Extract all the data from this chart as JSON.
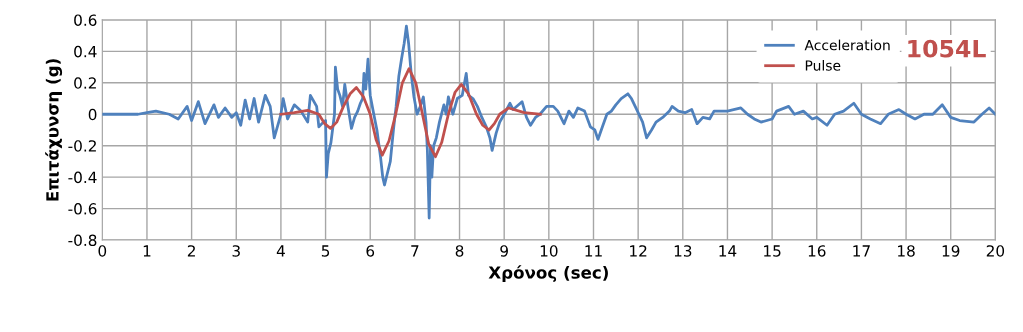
{
  "chart_data": {
    "type": "line",
    "xlabel": "Χρόνος (sec)",
    "ylabel": "Επιτάχυνση (g)",
    "annotations": [
      "1054L"
    ],
    "xlim": [
      0,
      20
    ],
    "xticks": [
      0,
      1,
      2,
      3,
      4,
      5,
      6,
      7,
      8,
      9,
      10,
      11,
      12,
      13,
      14,
      15,
      16,
      17,
      18,
      19,
      20
    ],
    "ylim": [
      -0.8,
      0.6
    ],
    "yticks": [
      -0.8,
      -0.6,
      -0.4,
      -0.2,
      0,
      0.2,
      0.4,
      0.6
    ],
    "grid": true,
    "legend": "top right",
    "marker": "none",
    "line_style": "solid",
    "series": [
      {
        "name": "Acceleration",
        "color": "#4f81bd",
        "x": [
          0,
          0.8,
          1.0,
          1.2,
          1.5,
          1.7,
          1.9,
          2.0,
          2.15,
          2.3,
          2.5,
          2.6,
          2.75,
          2.9,
          3.0,
          3.1,
          3.2,
          3.3,
          3.4,
          3.5,
          3.65,
          3.76,
          3.85,
          4.0,
          4.05,
          4.15,
          4.3,
          4.45,
          4.6,
          4.66,
          4.8,
          4.85,
          4.95,
          5.0,
          5.02,
          5.06,
          5.12,
          5.2,
          5.22,
          5.27,
          5.32,
          5.38,
          5.43,
          5.5,
          5.58,
          5.65,
          5.72,
          5.78,
          5.83,
          5.86,
          5.9,
          5.95,
          6.0,
          6.08,
          6.15,
          6.23,
          6.28,
          6.32,
          6.38,
          6.45,
          6.52,
          6.58,
          6.64,
          6.7,
          6.76,
          6.81,
          6.86,
          6.92,
          6.98,
          7.05,
          7.12,
          7.19,
          7.25,
          7.28,
          7.32,
          7.35,
          7.38,
          7.42,
          7.48,
          7.55,
          7.65,
          7.7,
          7.75,
          7.85,
          7.95,
          8.06,
          8.15,
          8.2,
          8.3,
          8.4,
          8.5,
          8.6,
          8.68,
          8.73,
          8.82,
          8.9,
          9.0,
          9.13,
          9.2,
          9.4,
          9.5,
          9.59,
          9.7,
          9.8,
          9.95,
          10.1,
          10.2,
          10.34,
          10.45,
          10.55,
          10.65,
          10.8,
          10.93,
          11.03,
          11.1,
          11.2,
          11.3,
          11.4,
          11.5,
          11.62,
          11.77,
          11.85,
          11.95,
          12.05,
          12.1,
          12.19,
          12.3,
          12.4,
          12.55,
          12.7,
          12.76,
          12.9,
          13.05,
          13.2,
          13.32,
          13.45,
          13.6,
          13.7,
          13.85,
          14.0,
          14.3,
          14.45,
          14.6,
          14.75,
          15.0,
          15.1,
          15.37,
          15.5,
          15.7,
          15.9,
          16.0,
          16.23,
          16.4,
          16.6,
          16.83,
          17.0,
          17.2,
          17.43,
          17.6,
          17.84,
          18.0,
          18.2,
          18.4,
          18.6,
          18.81,
          19.0,
          19.2,
          19.52,
          19.7,
          19.86,
          20.0
        ],
        "values": [
          0,
          0,
          0.01,
          0.02,
          0,
          -0.03,
          0.05,
          -0.04,
          0.08,
          -0.06,
          0.06,
          -0.02,
          0.04,
          -0.02,
          0.01,
          -0.07,
          0.09,
          -0.03,
          0.1,
          -0.05,
          0.12,
          0.05,
          -0.15,
          0.0,
          0.1,
          -0.03,
          0.06,
          0.02,
          -0.05,
          0.12,
          0.05,
          -0.08,
          -0.05,
          -0.04,
          -0.4,
          -0.25,
          -0.18,
          0.0,
          0.3,
          0.16,
          0.12,
          0.05,
          0.19,
          0.05,
          -0.09,
          -0.02,
          0.02,
          0.07,
          0.1,
          0.26,
          0.16,
          0.35,
          0.12,
          0.0,
          -0.1,
          -0.27,
          -0.4,
          -0.45,
          -0.38,
          -0.3,
          -0.1,
          0.05,
          0.24,
          0.35,
          0.45,
          0.56,
          0.45,
          0.25,
          0.11,
          0.0,
          0.05,
          0.11,
          -0.05,
          -0.23,
          -0.66,
          -0.2,
          -0.4,
          -0.2,
          -0.15,
          -0.05,
          0.06,
          0.0,
          0.11,
          0.0,
          0.1,
          0.12,
          0.26,
          0.12,
          0.1,
          0.05,
          -0.02,
          -0.08,
          -0.15,
          -0.23,
          -0.12,
          -0.05,
          0.0,
          0.07,
          0.03,
          0.08,
          -0.02,
          -0.07,
          -0.02,
          0.0,
          0.05,
          0.05,
          0.02,
          -0.06,
          0.02,
          -0.02,
          0.04,
          0.02,
          -0.08,
          -0.1,
          -0.16,
          -0.08,
          0.0,
          0.02,
          0.06,
          0.1,
          0.13,
          0.1,
          0.04,
          -0.02,
          -0.05,
          -0.15,
          -0.1,
          -0.05,
          -0.02,
          0.02,
          0.05,
          0.02,
          0.01,
          0.03,
          -0.06,
          -0.02,
          -0.03,
          0.02,
          0.02,
          0.02,
          0.04,
          0.0,
          -0.03,
          -0.05,
          -0.03,
          0.02,
          0.05,
          0.0,
          0.02,
          -0.03,
          -0.02,
          -0.07,
          0.0,
          0.02,
          0.07,
          0.0,
          -0.03,
          -0.06,
          0.0,
          0.03,
          0.0,
          -0.03,
          0.0,
          0.0,
          0.06,
          -0.02,
          -0.04,
          -0.05,
          0.0,
          0.04,
          0.0
        ]
      },
      {
        "name": "Pulse",
        "color": "#c0504d",
        "x": [
          4.0,
          4.3,
          4.6,
          4.85,
          4.98,
          5.11,
          5.25,
          5.4,
          5.55,
          5.69,
          5.85,
          6.0,
          6.13,
          6.27,
          6.42,
          6.57,
          6.72,
          6.87,
          7.02,
          7.17,
          7.31,
          7.46,
          7.6,
          7.75,
          7.9,
          8.04,
          8.2,
          8.38,
          8.52,
          8.66,
          8.78,
          8.9,
          9.1,
          9.45,
          9.81
        ],
        "values": [
          0,
          0.01,
          0.025,
          0.0,
          -0.06,
          -0.09,
          -0.05,
          0.05,
          0.13,
          0.17,
          0.11,
          0.0,
          -0.16,
          -0.26,
          -0.17,
          0.0,
          0.2,
          0.29,
          0.2,
          0.0,
          -0.19,
          -0.27,
          -0.18,
          0.0,
          0.14,
          0.19,
          0.13,
          0.0,
          -0.07,
          -0.1,
          -0.06,
          0.0,
          0.04,
          0.01,
          0.0
        ]
      }
    ]
  }
}
